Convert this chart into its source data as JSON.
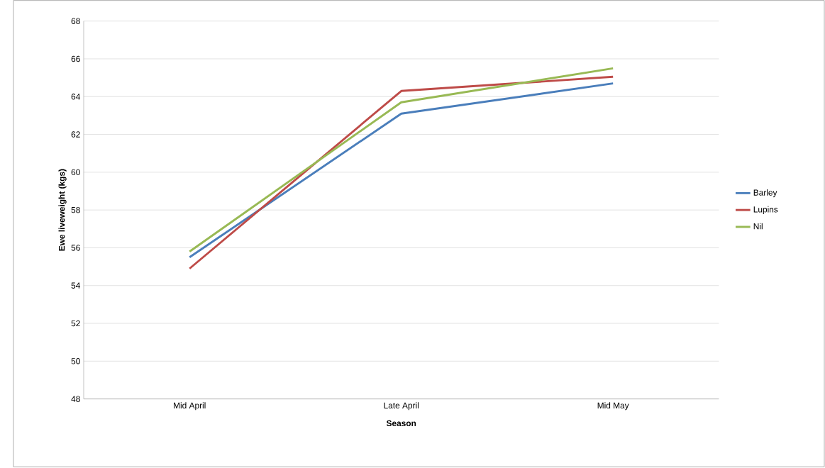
{
  "chart_data": {
    "type": "line",
    "xlabel": "Season",
    "ylabel": "Ewe liveweight (kgs)",
    "categories": [
      "Mid April",
      "Late April",
      "Mid May"
    ],
    "series": [
      {
        "name": "Barley",
        "color": "#4a7ebb",
        "values": [
          55.5,
          63.1,
          64.7
        ]
      },
      {
        "name": "Lupins",
        "color": "#be4b48",
        "values": [
          54.9,
          64.3,
          65.05
        ]
      },
      {
        "name": "Nil",
        "color": "#98b954",
        "values": [
          55.8,
          63.7,
          65.5
        ]
      }
    ],
    "ylim": [
      48,
      68
    ],
    "yticks": [
      48,
      50,
      52,
      54,
      56,
      58,
      60,
      62,
      64,
      66,
      68
    ],
    "grid": "y",
    "legend": "right",
    "marker": "none",
    "line_style": "solid"
  }
}
